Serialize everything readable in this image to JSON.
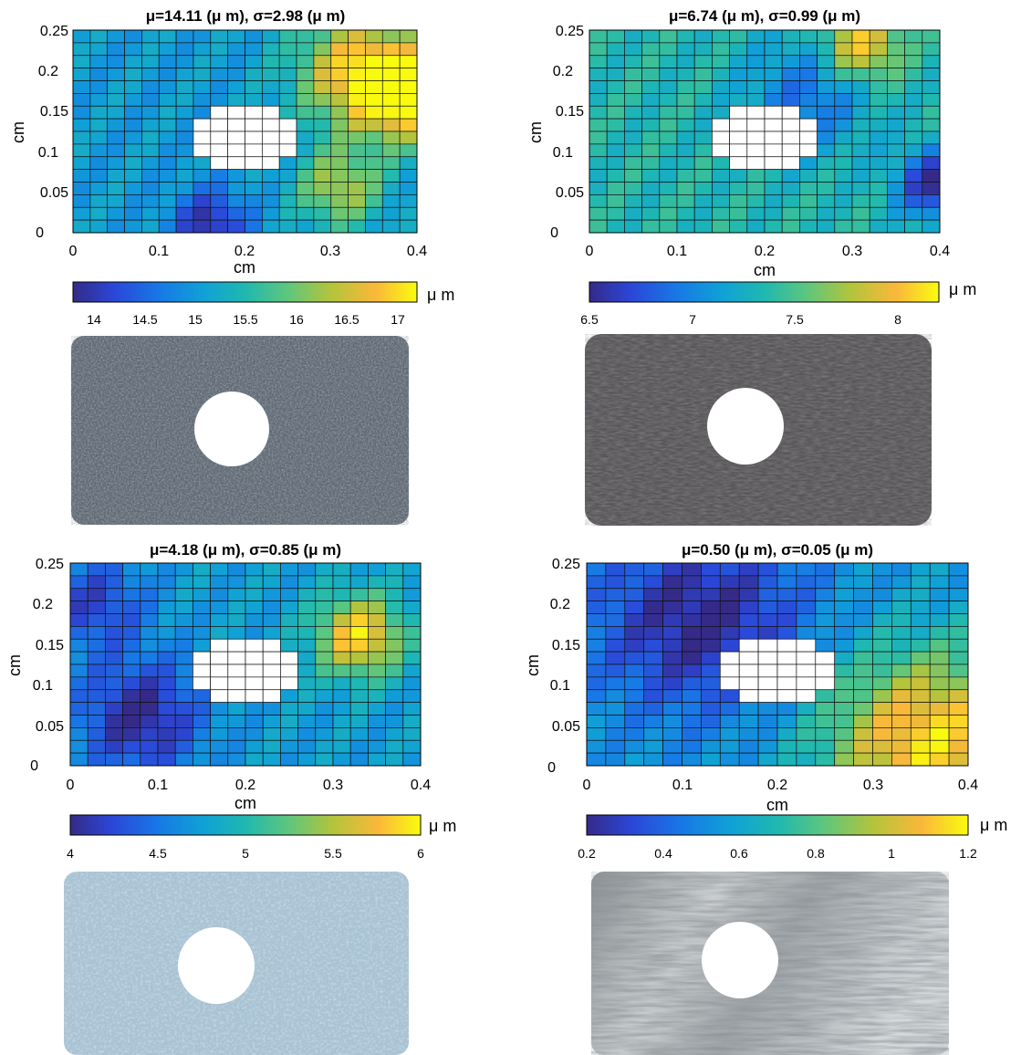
{
  "figure": {
    "panels": [
      {
        "title": "μ=14.11 (μ m), σ=2.98 (μ m)",
        "xlabel": "cm",
        "ylabel": "cm",
        "x_ticks": [
          "0",
          "0.1",
          "0.2",
          "0.3",
          "0.4"
        ],
        "y_ticks": [
          "0",
          "0.05",
          "0.1",
          "0.15",
          "0.2",
          "0.25"
        ],
        "colorbar_unit": "μ m",
        "colorbar_ticks": [
          "14",
          "14.5",
          "15",
          "15.5",
          "16",
          "16.5",
          "17"
        ],
        "photo_texture": "coarse-grained-gray-surface"
      },
      {
        "title": "μ=6.74 (μ m), σ=0.99 (μ m)",
        "xlabel": "cm",
        "ylabel": "cm",
        "x_ticks": [
          "0",
          "0.1",
          "0.2",
          "0.3",
          "0.4"
        ],
        "y_ticks": [
          "0",
          "0.05",
          "0.1",
          "0.15",
          "0.2",
          "0.25"
        ],
        "colorbar_unit": "μ m",
        "colorbar_ticks": [
          "6.5",
          "7",
          "7.5",
          "8"
        ],
        "photo_texture": "dark-gray-rough-surface"
      },
      {
        "title": "μ=4.18 (μ m), σ=0.85 (μ m)",
        "xlabel": "cm",
        "ylabel": "cm",
        "x_ticks": [
          "0",
          "0.1",
          "0.2",
          "0.3",
          "0.4"
        ],
        "y_ticks": [
          "0",
          "0.05",
          "0.1",
          "0.15",
          "0.2",
          "0.25"
        ],
        "colorbar_unit": "μ m",
        "colorbar_ticks": [
          "4",
          "4.5",
          "5",
          "5.5",
          "6"
        ],
        "photo_texture": "light-blue-gray-surface"
      },
      {
        "title": "μ=0.50 (μ m), σ=0.05 (μ m)",
        "xlabel": "cm",
        "ylabel": "cm",
        "x_ticks": [
          "0",
          "0.1",
          "0.2",
          "0.3",
          "0.4"
        ],
        "y_ticks": [
          "0",
          "0.05",
          "0.1",
          "0.15",
          "0.2",
          "0.25"
        ],
        "colorbar_unit": "μ m",
        "colorbar_ticks": [
          "0.2",
          "0.4",
          "0.6",
          "0.8",
          "1",
          "1.2"
        ],
        "photo_texture": "polished-metal-surface"
      }
    ]
  },
  "chart_data": [
    {
      "type": "heatmap",
      "title": "μ=14.11 (μ m), σ=2.98 (μ m)",
      "xlabel": "cm",
      "ylabel": "cm",
      "xlim": [
        0,
        0.4
      ],
      "ylim": [
        0,
        0.25
      ],
      "grid_cols": 20,
      "grid_rows": 16,
      "color_range": [
        13.7,
        17.2
      ],
      "colormap": "parula",
      "mean": 14.11,
      "std": 2.98,
      "hole_center": [
        0.2,
        0.12
      ],
      "hole_radius": 0.055,
      "hotspots": [
        {
          "x": 0.33,
          "y": 0.2,
          "value": 16.8,
          "spread": 0.05
        },
        {
          "x": 0.39,
          "y": 0.17,
          "value": 17.1,
          "spread": 0.04
        },
        {
          "x": 0.31,
          "y": 0.055,
          "value": 16.3,
          "spread": 0.035
        },
        {
          "x": 0.16,
          "y": 0.01,
          "value": 13.8,
          "spread": 0.03
        }
      ],
      "base": 15.0
    },
    {
      "type": "heatmap",
      "title": "μ=6.74 (μ m), σ=0.99 (μ m)",
      "xlabel": "cm",
      "ylabel": "cm",
      "xlim": [
        0,
        0.4
      ],
      "ylim": [
        0,
        0.25
      ],
      "grid_cols": 20,
      "grid_rows": 16,
      "color_range": [
        6.5,
        8.2
      ],
      "colormap": "parula",
      "mean": 6.74,
      "std": 0.99,
      "hole_center": [
        0.2,
        0.12
      ],
      "hole_radius": 0.055,
      "hotspots": [
        {
          "x": 0.31,
          "y": 0.23,
          "value": 8.1,
          "spread": 0.03
        },
        {
          "x": 0.395,
          "y": 0.06,
          "value": 6.5,
          "spread": 0.03
        },
        {
          "x": 0.25,
          "y": 0.17,
          "value": 6.9,
          "spread": 0.05
        }
      ],
      "base": 7.35
    },
    {
      "type": "heatmap",
      "title": "μ=4.18 (μ m), σ=0.85 (μ m)",
      "xlabel": "cm",
      "ylabel": "cm",
      "xlim": [
        0,
        0.4
      ],
      "ylim": [
        0,
        0.25
      ],
      "grid_cols": 20,
      "grid_rows": 16,
      "color_range": [
        4.0,
        6.0
      ],
      "colormap": "parula",
      "mean": 4.18,
      "std": 0.85,
      "hole_center": [
        0.2,
        0.12
      ],
      "hole_radius": 0.055,
      "hotspots": [
        {
          "x": 0.33,
          "y": 0.16,
          "value": 5.9,
          "spread": 0.035
        },
        {
          "x": 0.08,
          "y": 0.06,
          "value": 4.0,
          "spread": 0.05
        },
        {
          "x": 0.03,
          "y": 0.2,
          "value": 4.2,
          "spread": 0.04
        }
      ],
      "base": 4.75
    },
    {
      "type": "heatmap",
      "title": "μ=0.50 (μ m), σ=0.05 (μ m)",
      "xlabel": "cm",
      "ylabel": "cm",
      "xlim": [
        0,
        0.4
      ],
      "ylim": [
        0,
        0.25
      ],
      "grid_cols": 20,
      "grid_rows": 16,
      "color_range": [
        0.2,
        1.2
      ],
      "colormap": "parula",
      "mean": 0.5,
      "std": 0.05,
      "hole_center": [
        0.2,
        0.12
      ],
      "hole_radius": 0.055,
      "hotspots": [
        {
          "x": 0.12,
          "y": 0.18,
          "value": 0.2,
          "spread": 0.08
        },
        {
          "x": 0.36,
          "y": 0.03,
          "value": 1.15,
          "spread": 0.08
        }
      ],
      "base": 0.55
    }
  ]
}
